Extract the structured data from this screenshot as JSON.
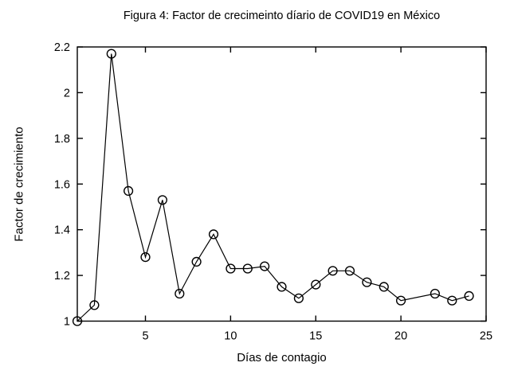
{
  "figure": {
    "background": "#ffffff",
    "foreground": "#000000"
  },
  "chart_data": {
    "type": "line",
    "title": "Figura 4: Factor de crecimeinto díario de COVID19 en México",
    "xlabel": "Días de contagio",
    "ylabel": "Factor de crecimiento",
    "x": [
      1,
      2,
      3,
      4,
      5,
      6,
      7,
      8,
      9,
      10,
      11,
      12,
      13,
      14,
      15,
      16,
      17,
      18,
      19,
      20,
      22,
      23,
      24
    ],
    "y": [
      1.0,
      1.07,
      2.17,
      1.57,
      1.28,
      1.53,
      1.12,
      1.26,
      1.38,
      1.23,
      1.23,
      1.24,
      1.15,
      1.1,
      1.16,
      1.22,
      1.22,
      1.17,
      1.15,
      1.09,
      1.12,
      1.09,
      1.11
    ],
    "xlim": [
      1,
      25
    ],
    "ylim": [
      1,
      2.2
    ],
    "xticks": [
      5,
      10,
      15,
      20,
      25
    ],
    "xtick_labels": [
      "5",
      "10",
      "15",
      "20",
      "25"
    ],
    "yticks": [
      1,
      1.2,
      1.4,
      1.6,
      1.8,
      2,
      2.2
    ],
    "ytick_labels": [
      "1",
      "1.2",
      "1.4",
      "1.6",
      "1.8",
      "2",
      "2.2"
    ],
    "grid": false,
    "box": true,
    "marker": "open-circle",
    "line_color": "#000000",
    "marker_color": "#000000",
    "tick_label_color": "#000000"
  }
}
